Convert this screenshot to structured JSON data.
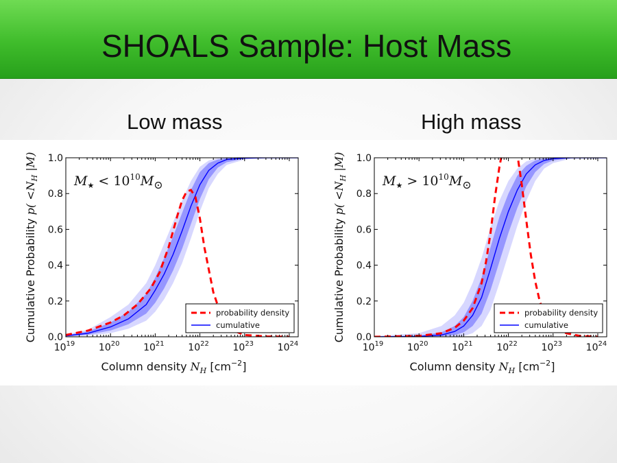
{
  "slide": {
    "title": "SHOALS Sample: Host Mass",
    "subtitles": [
      "Low mass",
      "High mass"
    ]
  },
  "colors": {
    "title_bar": "#3fbc2b",
    "cumulative": "#0000ff",
    "probability_density": "#ff0000"
  },
  "chart_data": [
    {
      "type": "line",
      "panel": "Low mass",
      "annotation": {
        "prefix": "M",
        "star": "★",
        "relation": "<",
        "value": "10",
        "exponent": "10",
        "unit": "M",
        "sun": "⊙"
      },
      "xlabel": {
        "text": "Column density ",
        "symbol": "N",
        "sub": "H",
        "unit_open": "[cm",
        "unit_exp": "−2",
        "unit_close": "]"
      },
      "ylabel": {
        "text": "Cumulative Probability ",
        "math": "p( <N",
        "sub": "H",
        "tail": " |M)"
      },
      "x_scale": "log",
      "xlim": [
        19,
        24.2
      ],
      "ylim": [
        0,
        1
      ],
      "x_ticks": [
        19,
        20,
        21,
        22,
        23,
        24
      ],
      "x_tick_base": "10",
      "y_ticks": [
        "0.0",
        "0.2",
        "0.4",
        "0.6",
        "0.8",
        "1.0"
      ],
      "y_tick_values": [
        0,
        0.2,
        0.4,
        0.6,
        0.8,
        1.0
      ],
      "legend": {
        "position": "lower-right",
        "entries": [
          "probability density",
          "cumulative"
        ]
      },
      "series": [
        {
          "name": "cumulative",
          "log_x": [
            19.0,
            19.5,
            20.0,
            20.4,
            20.8,
            21.0,
            21.2,
            21.4,
            21.6,
            21.8,
            22.0,
            22.2,
            22.4,
            22.6,
            23.0,
            23.5,
            24.2
          ],
          "y": [
            0.005,
            0.02,
            0.055,
            0.1,
            0.18,
            0.26,
            0.35,
            0.46,
            0.59,
            0.73,
            0.85,
            0.93,
            0.97,
            0.99,
            0.998,
            1.0,
            1.0
          ],
          "band_inner_lower": [
            0.003,
            0.012,
            0.035,
            0.07,
            0.13,
            0.19,
            0.27,
            0.37,
            0.49,
            0.63,
            0.77,
            0.88,
            0.945,
            0.975,
            0.995,
            1.0,
            1.0
          ],
          "band_inner_upper": [
            0.008,
            0.03,
            0.08,
            0.14,
            0.24,
            0.33,
            0.44,
            0.56,
            0.69,
            0.82,
            0.92,
            0.97,
            0.99,
            0.998,
            1.0,
            1.0,
            1.0
          ],
          "band_outer_lower": [
            0.0,
            0.007,
            0.02,
            0.045,
            0.09,
            0.14,
            0.21,
            0.3,
            0.41,
            0.55,
            0.7,
            0.83,
            0.91,
            0.96,
            0.99,
            1.0,
            1.0
          ],
          "band_outer_upper": [
            0.012,
            0.04,
            0.11,
            0.18,
            0.3,
            0.4,
            0.52,
            0.64,
            0.76,
            0.87,
            0.95,
            0.985,
            0.997,
            1.0,
            1.0,
            1.0,
            1.0
          ]
        },
        {
          "name": "probability density",
          "log_x": [
            19.0,
            19.5,
            20.0,
            20.3,
            20.6,
            20.9,
            21.1,
            21.3,
            21.5,
            21.6,
            21.7,
            21.8,
            21.9,
            22.0,
            22.1,
            22.3,
            22.5,
            22.8,
            23.0,
            23.5,
            24.0
          ],
          "y": [
            0.01,
            0.035,
            0.08,
            0.12,
            0.18,
            0.27,
            0.36,
            0.5,
            0.68,
            0.76,
            0.81,
            0.82,
            0.78,
            0.66,
            0.5,
            0.25,
            0.1,
            0.03,
            0.01,
            0.002,
            0.0
          ]
        }
      ]
    },
    {
      "type": "line",
      "panel": "High mass",
      "annotation": {
        "prefix": "M",
        "star": "★",
        "relation": ">",
        "value": "10",
        "exponent": "10",
        "unit": "M",
        "sun": "⊙"
      },
      "xlabel": {
        "text": "Column density ",
        "symbol": "N",
        "sub": "H",
        "unit_open": "[cm",
        "unit_exp": "−2",
        "unit_close": "]"
      },
      "ylabel": {
        "text": "Cumulative Probability ",
        "math": "p( <N",
        "sub": "H",
        "tail": " |M)"
      },
      "x_scale": "log",
      "xlim": [
        19,
        24.2
      ],
      "ylim": [
        0,
        1
      ],
      "x_ticks": [
        19,
        20,
        21,
        22,
        23,
        24
      ],
      "x_tick_base": "10",
      "y_ticks": [
        "0.0",
        "0.2",
        "0.4",
        "0.6",
        "0.8",
        "1.0"
      ],
      "y_tick_values": [
        0,
        0.2,
        0.4,
        0.6,
        0.8,
        1.0
      ],
      "legend": {
        "position": "lower-right",
        "entries": [
          "probability density",
          "cumulative"
        ]
      },
      "series": [
        {
          "name": "cumulative",
          "log_x": [
            19.0,
            20.0,
            20.5,
            20.8,
            21.0,
            21.2,
            21.4,
            21.6,
            21.8,
            22.0,
            22.2,
            22.4,
            22.6,
            22.8,
            23.0,
            23.4,
            24.2
          ],
          "y": [
            0.0,
            0.002,
            0.01,
            0.03,
            0.06,
            0.12,
            0.22,
            0.38,
            0.55,
            0.7,
            0.82,
            0.91,
            0.96,
            0.985,
            0.995,
            1.0,
            1.0
          ],
          "band_inner_lower": [
            0.0,
            0.0,
            0.003,
            0.01,
            0.025,
            0.06,
            0.13,
            0.26,
            0.42,
            0.58,
            0.72,
            0.84,
            0.92,
            0.965,
            0.985,
            0.998,
            1.0
          ],
          "band_inner_upper": [
            0.0,
            0.006,
            0.025,
            0.06,
            0.11,
            0.2,
            0.33,
            0.5,
            0.67,
            0.8,
            0.9,
            0.955,
            0.985,
            0.996,
            1.0,
            1.0,
            1.0
          ],
          "band_outer_lower": [
            0.0,
            0.0,
            0.0,
            0.0,
            0.005,
            0.02,
            0.06,
            0.15,
            0.3,
            0.46,
            0.62,
            0.76,
            0.87,
            0.94,
            0.97,
            0.995,
            1.0
          ],
          "band_outer_upper": [
            0.003,
            0.02,
            0.06,
            0.12,
            0.19,
            0.3,
            0.44,
            0.61,
            0.76,
            0.87,
            0.94,
            0.98,
            0.995,
            1.0,
            1.0,
            1.0,
            1.0
          ]
        },
        {
          "name": "probability density",
          "log_x": [
            19.0,
            20.0,
            20.5,
            20.8,
            21.0,
            21.2,
            21.4,
            21.5,
            21.6,
            21.7,
            21.8,
            21.9,
            22.0,
            22.1,
            22.2,
            22.3,
            22.4,
            22.5,
            22.6,
            22.7,
            22.8,
            22.9,
            23.0,
            23.3,
            23.6,
            24.0
          ],
          "y": [
            0.0,
            0.005,
            0.02,
            0.05,
            0.09,
            0.16,
            0.3,
            0.42,
            0.58,
            0.78,
            0.95,
            1.08,
            1.14,
            1.12,
            1.02,
            0.85,
            0.65,
            0.46,
            0.31,
            0.2,
            0.13,
            0.08,
            0.05,
            0.02,
            0.005,
            0.0
          ]
        }
      ]
    }
  ]
}
